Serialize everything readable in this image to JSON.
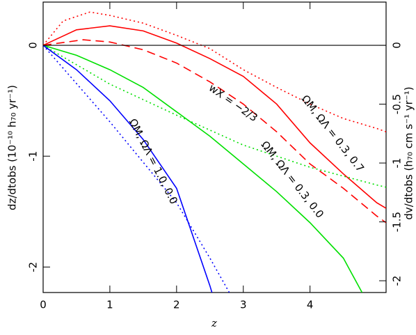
{
  "chart_data": {
    "type": "line",
    "xlabel": "z",
    "ylabel": "dz/dtobs (10⁻¹⁰ h₇₀ yr⁻¹)",
    "y2label": "dv/dtobs (h₇₀ cm s⁻¹ yr⁻¹)",
    "xlim": [
      0,
      5.14
    ],
    "ylim": [
      -2.23,
      0.39
    ],
    "y2lim": [
      -2.1,
      0.367
    ],
    "xticks": [
      0,
      1,
      2,
      3,
      4
    ],
    "yticks": [
      -2,
      -1,
      0
    ],
    "y2ticks": [
      -2,
      -1.5,
      -1,
      -0.5,
      0
    ],
    "annotations": [
      "ΩM, ΩΛ = 0.3, 0.7",
      "wX = −2/3",
      "ΩM, ΩΛ = 1.0, 0.0",
      "ΩM, ΩΛ = 0.3, 0.0"
    ],
    "series": [
      {
        "color": "#ff0000",
        "dash": "solid",
        "x": [
          0,
          0.5,
          1,
          1.5,
          2,
          2.5,
          3,
          3.5,
          4,
          4.5,
          5,
          5.14
        ],
        "values": [
          0,
          0.14,
          0.176,
          0.13,
          0.02,
          -0.12,
          -0.28,
          -0.53,
          -0.88,
          -1.16,
          -1.42,
          -1.47
        ]
      },
      {
        "color": "#ff0000",
        "dash": "dotted",
        "x": [
          0,
          0.3,
          0.7,
          1,
          1.5,
          2,
          2.5,
          3,
          3.5,
          4,
          4.5,
          5,
          5.14
        ],
        "values": [
          0,
          0.22,
          0.3,
          0.27,
          0.2,
          0.09,
          -0.03,
          -0.22,
          -0.38,
          -0.53,
          -0.66,
          -0.75,
          -0.78
        ]
      },
      {
        "color": "#ff0000",
        "dash": "dashed",
        "x": [
          0,
          0.6,
          1,
          1.5,
          2,
          2.5,
          3,
          3.5,
          4,
          4.5,
          5,
          5.14
        ],
        "values": [
          0,
          0.05,
          0.03,
          -0.04,
          -0.16,
          -0.33,
          -0.53,
          -0.78,
          -1.07,
          -1.29,
          -1.54,
          -1.6
        ]
      },
      {
        "color": "#00e000",
        "dash": "solid",
        "x": [
          0,
          0.5,
          1,
          1.5,
          2,
          2.5,
          3,
          3.5,
          4,
          4.5,
          4.78
        ],
        "values": [
          0,
          -0.09,
          -0.22,
          -0.38,
          -0.6,
          -0.82,
          -1.07,
          -1.32,
          -1.6,
          -1.92,
          -2.23
        ]
      },
      {
        "color": "#00e000",
        "dash": "dotted",
        "x": [
          0,
          1,
          2,
          3,
          4,
          5,
          5.14
        ],
        "values": [
          0,
          -0.35,
          -0.63,
          -0.9,
          -1.1,
          -1.26,
          -1.28
        ]
      },
      {
        "color": "#0000ff",
        "dash": "solid",
        "x": [
          0,
          0.5,
          1,
          1.5,
          2,
          2.5,
          2.53
        ],
        "values": [
          0,
          -0.22,
          -0.5,
          -0.85,
          -1.29,
          -2.17,
          -2.23
        ]
      },
      {
        "color": "#0000ff",
        "dash": "dotted",
        "x": [
          0,
          1,
          2,
          2.5,
          2.79
        ],
        "values": [
          0,
          -0.69,
          -1.42,
          -1.92,
          -2.23
        ]
      }
    ]
  }
}
